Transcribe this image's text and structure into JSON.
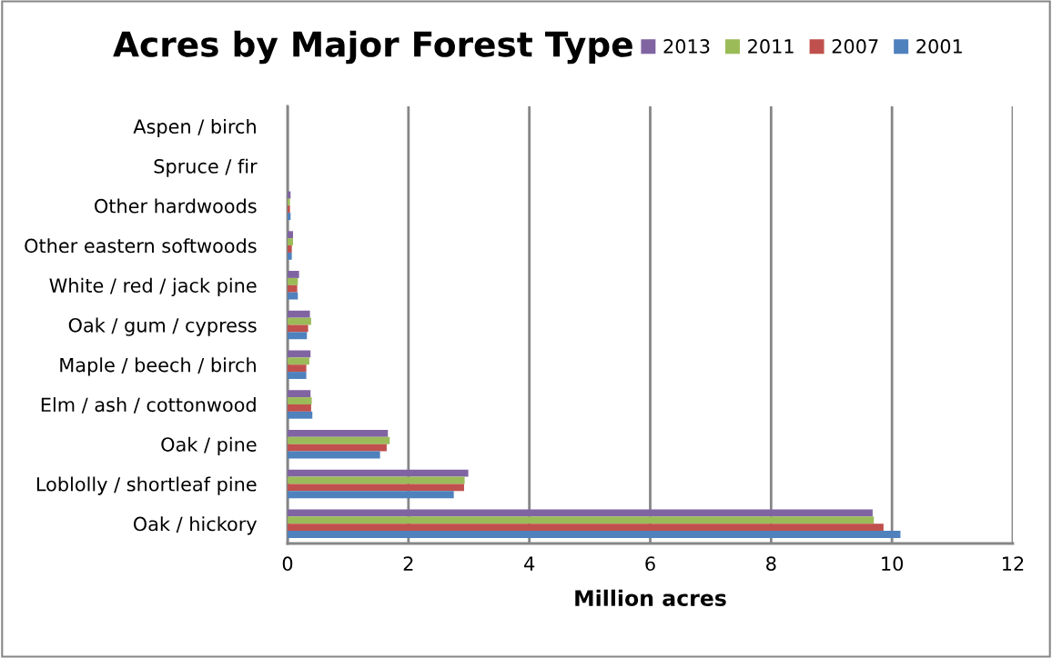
{
  "chart_data": {
    "type": "bar",
    "orientation": "horizontal",
    "title": "Acres by Major Forest Type",
    "xlabel": "Million acres",
    "categories": [
      "Aspen / birch",
      "Spruce / fir",
      "Other hardwoods",
      "Other eastern softwoods",
      "White / red / jack pine",
      "Oak / gum / cypress",
      "Maple / beech / birch",
      "Elm / ash / cottonwood",
      "Oak / pine",
      "Loblolly / shortleaf pine",
      "Oak / hickory"
    ],
    "series": [
      {
        "name": "2013",
        "color": "#8064a2",
        "values": [
          0,
          null,
          0.05,
          0.09,
          0.19,
          0.37,
          0.38,
          0.38,
          1.66,
          2.99,
          9.68
        ]
      },
      {
        "name": "2011",
        "color": "#9bbb59",
        "values": [
          0,
          null,
          0.04,
          0.09,
          0.17,
          0.39,
          0.36,
          0.4,
          1.69,
          2.93,
          9.7
        ]
      },
      {
        "name": "2007",
        "color": "#c0504d",
        "values": [
          0,
          null,
          0.04,
          0.07,
          0.16,
          0.34,
          0.31,
          0.39,
          1.64,
          2.92,
          9.86
        ]
      },
      {
        "name": "2001",
        "color": "#4f81bd",
        "values": [
          0,
          null,
          0.05,
          0.07,
          0.17,
          0.32,
          0.31,
          0.41,
          1.53,
          2.75,
          10.14
        ]
      }
    ],
    "xlim": [
      0,
      12
    ],
    "xticks": [
      0,
      2,
      4,
      6,
      8,
      10,
      12
    ],
    "grid": "x",
    "legend": "top right"
  }
}
